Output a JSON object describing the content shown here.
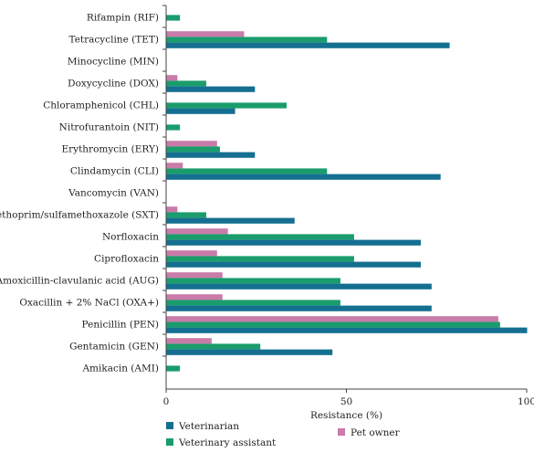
{
  "chart_data": {
    "type": "bar",
    "orientation": "horizontal",
    "categories": [
      "Rifampin (RIF)",
      "Tetracycline (TET)",
      "Minocycline (MIN)",
      "Doxycycline (DOX)",
      "Chloramphenicol (CHL)",
      "Nitrofurantoin (NIT)",
      "Erythromycin (ERY)",
      "Clindamycin (CLI)",
      "Vancomycin (VAN)",
      "Trimethoprim/sulfamethoxazole (SXT)",
      "Norfloxacin",
      "Ciprofloxacin",
      "Amoxicillin-clavulanic acid (AUG)",
      "Oxacillin + 2% NaCl (OXA+)",
      "Penicillin (PEN)",
      "Gentamicin (GEN)",
      "Amikacin (AMI)"
    ],
    "series": [
      {
        "name": "Pet owner",
        "color": "#c97ba9",
        "values": [
          0,
          21.5,
          0,
          3,
          0,
          0,
          14,
          4.5,
          0,
          3,
          17,
          14,
          15.5,
          15.5,
          92,
          12.5,
          0
        ]
      },
      {
        "name": "Veterinary assistant",
        "color": "#1a9c6c",
        "values": [
          3.7,
          44.5,
          0,
          11,
          33.3,
          3.7,
          14.8,
          44.5,
          0,
          11,
          52,
          52,
          48.2,
          48.2,
          92.5,
          26,
          3.7
        ]
      },
      {
        "name": "Veterinarian",
        "color": "#156f91",
        "values": [
          0,
          78.5,
          0,
          24.5,
          19,
          0,
          24.5,
          76,
          0,
          35.5,
          70.5,
          70.5,
          73.5,
          73.5,
          100,
          46,
          0
        ]
      }
    ],
    "xlabel": "Resistance (%)",
    "xlim": [
      0,
      100
    ],
    "xticks": [
      0,
      50,
      100
    ],
    "legend": {
      "position": "bottom",
      "order": [
        "Veterinarian",
        "Veterinary assistant",
        "Pet owner"
      ]
    },
    "grid": false
  }
}
